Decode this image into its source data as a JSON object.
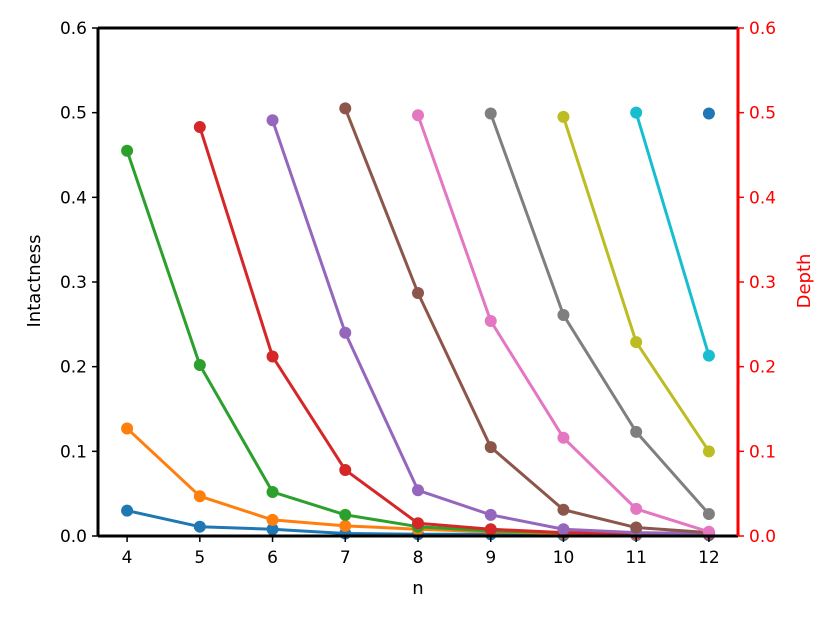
{
  "chart_data": {
    "type": "line",
    "xlabel": "n",
    "ylabel": "Intactness",
    "y2label": "Depth",
    "xlim": [
      3.6,
      12.4
    ],
    "ylim": [
      0,
      0.6
    ],
    "y2lim": [
      0,
      0.6
    ],
    "xticks": [
      4,
      5,
      6,
      7,
      8,
      9,
      10,
      11,
      12
    ],
    "yticks": [
      0.0,
      0.1,
      0.2,
      0.3,
      0.4,
      0.5,
      0.6
    ],
    "y2ticks": [
      0.0,
      0.1,
      0.2,
      0.3,
      0.4,
      0.5,
      0.6
    ],
    "grid": false,
    "colors": {
      "axis": "#000000",
      "right_axis": "#ff0000",
      "series": [
        "#1f77b4",
        "#ff7f0e",
        "#2ca02c",
        "#d62728",
        "#9467bd",
        "#8c564b",
        "#e377c2",
        "#7f7f7f",
        "#bcbd22",
        "#17becf"
      ]
    },
    "series": [
      {
        "x": [
          4,
          5,
          6,
          7,
          8,
          9,
          10,
          11,
          12
        ],
        "values": [
          0.03,
          0.011,
          0.008,
          0.003,
          0.002,
          0.002,
          0.001,
          0.001,
          0.001
        ]
      },
      {
        "x": [
          4,
          5,
          6,
          7,
          8,
          9,
          10,
          11,
          12
        ],
        "values": [
          0.127,
          0.047,
          0.019,
          0.012,
          0.008,
          0.005,
          0.003,
          0.002,
          0.002
        ]
      },
      {
        "x": [
          4,
          5,
          6,
          7,
          8,
          9,
          10,
          11,
          12
        ],
        "values": [
          0.455,
          0.202,
          0.052,
          0.025,
          0.011,
          0.006,
          0.004,
          0.003,
          0.002
        ]
      },
      {
        "x": [
          5,
          6,
          7,
          8,
          9,
          10,
          11,
          12
        ],
        "values": [
          0.483,
          0.212,
          0.078,
          0.015,
          0.008,
          0.004,
          0.003,
          0.002
        ]
      },
      {
        "x": [
          6,
          7,
          8,
          9,
          10,
          11,
          12
        ],
        "values": [
          0.491,
          0.24,
          0.054,
          0.025,
          0.008,
          0.004,
          0.003
        ]
      },
      {
        "x": [
          7,
          8,
          9,
          10,
          11,
          12
        ],
        "values": [
          0.505,
          0.287,
          0.105,
          0.031,
          0.01,
          0.004
        ]
      },
      {
        "x": [
          8,
          9,
          10,
          11,
          12
        ],
        "values": [
          0.497,
          0.254,
          0.116,
          0.032,
          0.005
        ]
      },
      {
        "x": [
          9,
          10,
          11,
          12
        ],
        "values": [
          0.499,
          0.261,
          0.123,
          0.026
        ]
      },
      {
        "x": [
          10,
          11,
          12
        ],
        "values": [
          0.495,
          0.229,
          0.1
        ]
      },
      {
        "x": [
          11,
          12
        ],
        "values": [
          0.5,
          0.213
        ]
      },
      {
        "x": [
          12
        ],
        "values": [
          0.499
        ]
      }
    ]
  }
}
